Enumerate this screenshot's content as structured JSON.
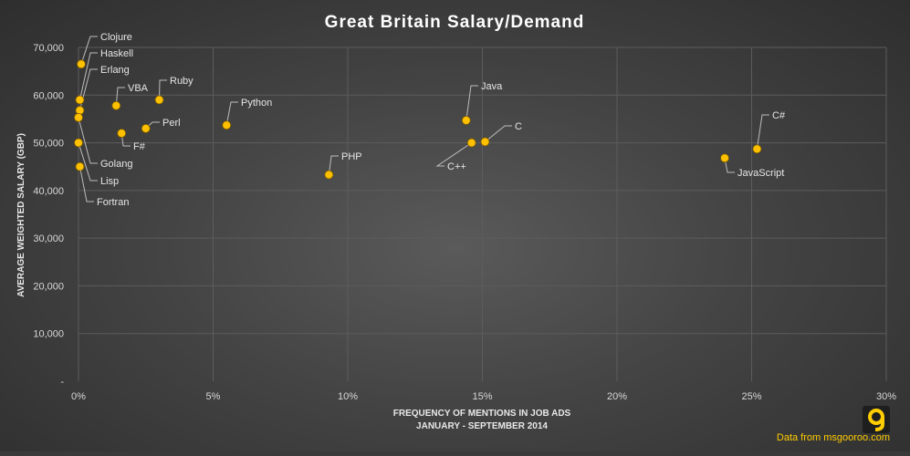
{
  "chart_data": {
    "type": "scatter",
    "title": "Great Britain  Salary/Demand",
    "xlabel": "FREQUENCY OF MENTIONS IN JOB ADS",
    "xlabel2": "JANUARY - SEPTEMBER 2014",
    "ylabel": "AVERAGE WEIGHTED SALARY (GBP)",
    "xlim": [
      0,
      30
    ],
    "ylim": [
      0,
      70000
    ],
    "x_ticks": [
      {
        "v": 0,
        "label": "0%"
      },
      {
        "v": 5,
        "label": "5%"
      },
      {
        "v": 10,
        "label": "10%"
      },
      {
        "v": 15,
        "label": "15%"
      },
      {
        "v": 20,
        "label": "20%"
      },
      {
        "v": 25,
        "label": "25%"
      },
      {
        "v": 30,
        "label": "30%"
      }
    ],
    "y_ticks": [
      {
        "v": 0,
        "label": "-"
      },
      {
        "v": 10000,
        "label": "10,000"
      },
      {
        "v": 20000,
        "label": "20,000"
      },
      {
        "v": 30000,
        "label": "30,000"
      },
      {
        "v": 40000,
        "label": "40,000"
      },
      {
        "v": 50000,
        "label": "50,000"
      },
      {
        "v": 60000,
        "label": "60,000"
      },
      {
        "v": 70000,
        "label": "70,000"
      }
    ],
    "grid": true,
    "marker_color": "#ffc000",
    "points": [
      {
        "label": "Clojure",
        "x": 0.1,
        "y": 66500
      },
      {
        "label": "Haskell",
        "x": 0.05,
        "y": 59000
      },
      {
        "label": "Erlang",
        "x": 0.05,
        "y": 56800
      },
      {
        "label": "Golang",
        "x": 0.0,
        "y": 55300
      },
      {
        "label": "Lisp",
        "x": 0.0,
        "y": 50000
      },
      {
        "label": "Fortran",
        "x": 0.05,
        "y": 45000
      },
      {
        "label": "VBA",
        "x": 1.4,
        "y": 57800
      },
      {
        "label": "Ruby",
        "x": 3.0,
        "y": 59000
      },
      {
        "label": "F#",
        "x": 1.6,
        "y": 52000
      },
      {
        "label": "Perl",
        "x": 2.5,
        "y": 53000
      },
      {
        "label": "Python",
        "x": 5.5,
        "y": 53700
      },
      {
        "label": "PHP",
        "x": 9.3,
        "y": 43300
      },
      {
        "label": "Java",
        "x": 14.4,
        "y": 54700
      },
      {
        "label": "C++",
        "x": 14.6,
        "y": 50000
      },
      {
        "label": "C",
        "x": 15.1,
        "y": 50200
      },
      {
        "label": "JavaScript",
        "x": 24.0,
        "y": 46800
      },
      {
        "label": "C#",
        "x": 25.2,
        "y": 48700
      }
    ]
  },
  "source_text": "Data from msgooroo.com",
  "logo_color": "#ffcc00"
}
